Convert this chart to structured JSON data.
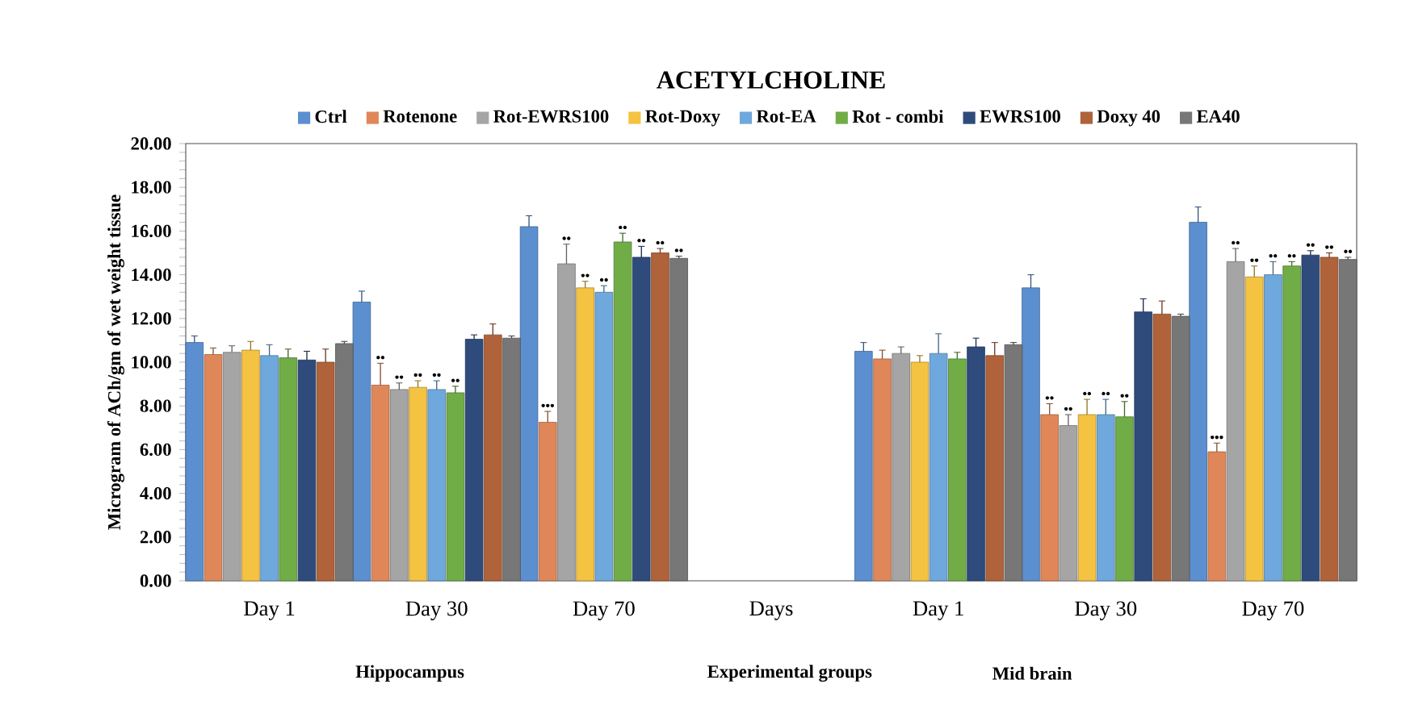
{
  "chart_data": {
    "type": "bar",
    "title": "ACETYLCHOLINE",
    "ylabel": "Microgram of ACh/gm of wet weight tissue",
    "categories": [
      "Day 1",
      "Day 30",
      "Day 70",
      "Days",
      "Day 1",
      "Day 30",
      "Day 70"
    ],
    "ylim": [
      0,
      20
    ],
    "yticks": [
      {
        "value": 0,
        "label": "0.00"
      },
      {
        "value": 2,
        "label": "2.00"
      },
      {
        "value": 4,
        "label": "4.00"
      },
      {
        "value": 6,
        "label": "6.00"
      },
      {
        "value": 8,
        "label": "8.00"
      },
      {
        "value": 10,
        "label": "10.00"
      },
      {
        "value": 12,
        "label": "12.00"
      },
      {
        "value": 14,
        "label": "14.00"
      },
      {
        "value": 16,
        "label": "16.00"
      },
      {
        "value": 18,
        "label": "18.00"
      },
      {
        "value": 20,
        "label": "20.00"
      }
    ],
    "legend": "top",
    "series": [
      {
        "name": "Ctrl",
        "color": "#5b8fd0",
        "values": [
          10.9,
          12.75,
          16.2,
          null,
          10.5,
          13.4,
          16.4
        ],
        "errors": [
          0.3,
          0.5,
          0.5,
          null,
          0.4,
          0.6,
          0.7
        ],
        "value_labels": [
          null,
          null,
          null,
          null,
          null,
          null,
          null
        ]
      },
      {
        "name": "Rotenone",
        "color": "#e0875a",
        "values": [
          10.35,
          8.95,
          7.25,
          null,
          10.15,
          7.6,
          5.9
        ],
        "errors": [
          0.3,
          1.0,
          0.5,
          null,
          0.4,
          0.5,
          0.4
        ],
        "value_labels": [
          null,
          "••",
          "•••",
          null,
          null,
          "••",
          "•••"
        ]
      },
      {
        "name": "Rot-EWRS100",
        "color": "#a5a5a5",
        "values": [
          10.45,
          8.75,
          14.5,
          null,
          10.4,
          7.1,
          14.6
        ],
        "errors": [
          0.3,
          0.3,
          0.9,
          null,
          0.3,
          0.5,
          0.6
        ],
        "value_labels": [
          null,
          "••",
          "••",
          null,
          null,
          "••",
          "••"
        ]
      },
      {
        "name": "Rot-Doxy",
        "color": "#f5c342",
        "values": [
          10.55,
          8.85,
          13.4,
          null,
          10.0,
          7.6,
          13.9
        ],
        "errors": [
          0.4,
          0.3,
          0.3,
          null,
          0.3,
          0.7,
          0.5
        ],
        "value_labels": [
          null,
          "••",
          "••",
          null,
          null,
          "••",
          "••"
        ]
      },
      {
        "name": "Rot-EA",
        "color": "#6fa8dc",
        "values": [
          10.3,
          8.75,
          13.2,
          null,
          10.4,
          7.6,
          14.0
        ],
        "errors": [
          0.5,
          0.4,
          0.3,
          null,
          0.9,
          0.7,
          0.6
        ],
        "value_labels": [
          null,
          "••",
          "••",
          null,
          null,
          "••",
          "••"
        ]
      },
      {
        "name": "Rot - combi",
        "color": "#70ad47",
        "values": [
          10.2,
          8.6,
          15.5,
          null,
          10.15,
          7.5,
          14.4
        ],
        "errors": [
          0.4,
          0.3,
          0.4,
          null,
          0.3,
          0.7,
          0.2
        ],
        "value_labels": [
          null,
          "••",
          "••",
          null,
          null,
          "••",
          "••"
        ]
      },
      {
        "name": "EWRS100",
        "color": "#2f4b7c",
        "values": [
          10.1,
          11.05,
          14.8,
          null,
          10.7,
          12.3,
          14.9
        ],
        "errors": [
          0.4,
          0.2,
          0.5,
          null,
          0.4,
          0.6,
          0.2
        ],
        "value_labels": [
          null,
          null,
          "••",
          null,
          null,
          null,
          "••"
        ]
      },
      {
        "name": "Doxy 40",
        "color": "#b0623a",
        "values": [
          10.0,
          11.25,
          15.0,
          null,
          10.3,
          12.2,
          14.8
        ],
        "errors": [
          0.6,
          0.5,
          0.2,
          null,
          0.6,
          0.6,
          0.2
        ],
        "value_labels": [
          null,
          null,
          "••",
          null,
          null,
          null,
          "••"
        ]
      },
      {
        "name": "EA40",
        "color": "#777777",
        "values": [
          10.85,
          11.1,
          14.75,
          null,
          10.8,
          12.1,
          14.7
        ],
        "errors": [
          0.1,
          0.1,
          0.1,
          null,
          0.1,
          0.1,
          0.1
        ],
        "value_labels": [
          null,
          null,
          "••",
          null,
          null,
          null,
          "••"
        ]
      }
    ],
    "annotations": [
      "Hippocampus",
      "Experimental groups",
      "Mid brain"
    ]
  }
}
